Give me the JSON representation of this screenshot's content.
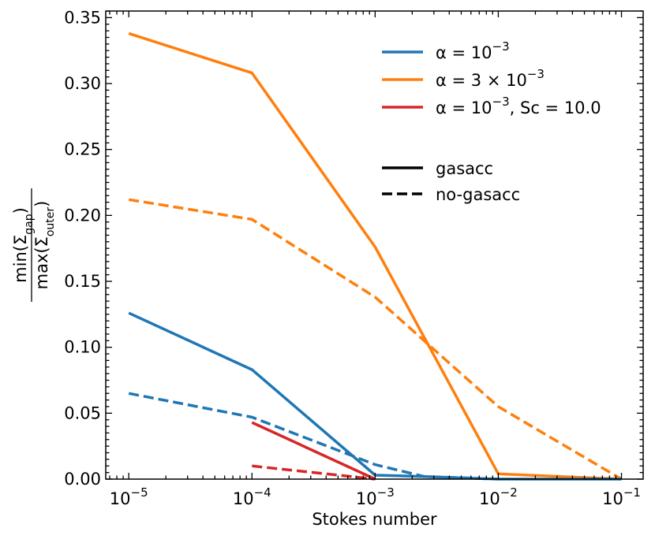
{
  "chart_data": {
    "type": "line",
    "xscale": "log",
    "xlabel": "Stokes number",
    "ylabel": {
      "numerator_main": "min(Σ",
      "numerator_sub": "gap",
      "numerator_close": ")",
      "denominator_main": "max(Σ",
      "denominator_sub": "outer",
      "denominator_close": ")"
    },
    "xlim": [
      6.5e-06,
      0.15
    ],
    "ylim": [
      0,
      0.355
    ],
    "xticks": [
      {
        "value": 1e-05,
        "base": "10",
        "exp": "−5"
      },
      {
        "value": 0.0001,
        "base": "10",
        "exp": "−4"
      },
      {
        "value": 0.001,
        "base": "10",
        "exp": "−3"
      },
      {
        "value": 0.01,
        "base": "10",
        "exp": "−2"
      },
      {
        "value": 0.1,
        "base": "10",
        "exp": "−1"
      }
    ],
    "yticks": [
      {
        "value": 0.0,
        "label": "0.00"
      },
      {
        "value": 0.05,
        "label": "0.05"
      },
      {
        "value": 0.1,
        "label": "0.10"
      },
      {
        "value": 0.15,
        "label": "0.15"
      },
      {
        "value": 0.2,
        "label": "0.20"
      },
      {
        "value": 0.25,
        "label": "0.25"
      },
      {
        "value": 0.3,
        "label": "0.30"
      },
      {
        "value": 0.35,
        "label": "0.35"
      }
    ],
    "series": [
      {
        "id": "a3-gasacc",
        "color": "#ff7f0e",
        "dash": "solid",
        "x": [
          1e-05,
          0.0001,
          0.001,
          0.01,
          0.1
        ],
        "y": [
          0.338,
          0.308,
          0.176,
          0.004,
          0.0
        ]
      },
      {
        "id": "a3-nogasacc",
        "color": "#ff7f0e",
        "dash": "dashed",
        "x": [
          1e-05,
          0.0001,
          0.001,
          0.01,
          0.1
        ],
        "y": [
          0.212,
          0.197,
          0.138,
          0.055,
          0.0
        ]
      },
      {
        "id": "a1-gasacc",
        "color": "#1f77b4",
        "dash": "solid",
        "x": [
          1e-05,
          0.0001,
          0.001,
          0.0025,
          0.01,
          0.1
        ],
        "y": [
          0.126,
          0.083,
          0.003,
          0.002,
          0.0,
          0.0
        ]
      },
      {
        "id": "a1-nogasacc",
        "color": "#1f77b4",
        "dash": "dashed",
        "x": [
          1e-05,
          0.0001,
          0.001,
          0.0025,
          0.01
        ],
        "y": [
          0.065,
          0.047,
          0.011,
          0.002,
          0.0
        ]
      },
      {
        "id": "a1sc-gasacc",
        "color": "#d62728",
        "dash": "solid",
        "x": [
          0.0001,
          0.001
        ],
        "y": [
          0.043,
          0.0
        ]
      },
      {
        "id": "a1sc-nogasacc",
        "color": "#d62728",
        "dash": "dashed",
        "x": [
          0.0001,
          0.001
        ],
        "y": [
          0.01,
          0.0
        ]
      }
    ],
    "legend": {
      "placement": "top-right",
      "color_entries": [
        {
          "color": "#1f77b4",
          "prefix": "α = 10",
          "sup": "−3",
          "suffix": ""
        },
        {
          "color": "#ff7f0e",
          "prefix": "α = 3 × 10",
          "sup": "−3",
          "suffix": ""
        },
        {
          "color": "#d62728",
          "prefix": "α = 10",
          "sup": "−3",
          "suffix": ", Sc = 10.0"
        }
      ],
      "style_entries": [
        {
          "dash": "solid",
          "label": "gasacc"
        },
        {
          "dash": "dashed",
          "label": "no-gasacc"
        }
      ]
    }
  }
}
